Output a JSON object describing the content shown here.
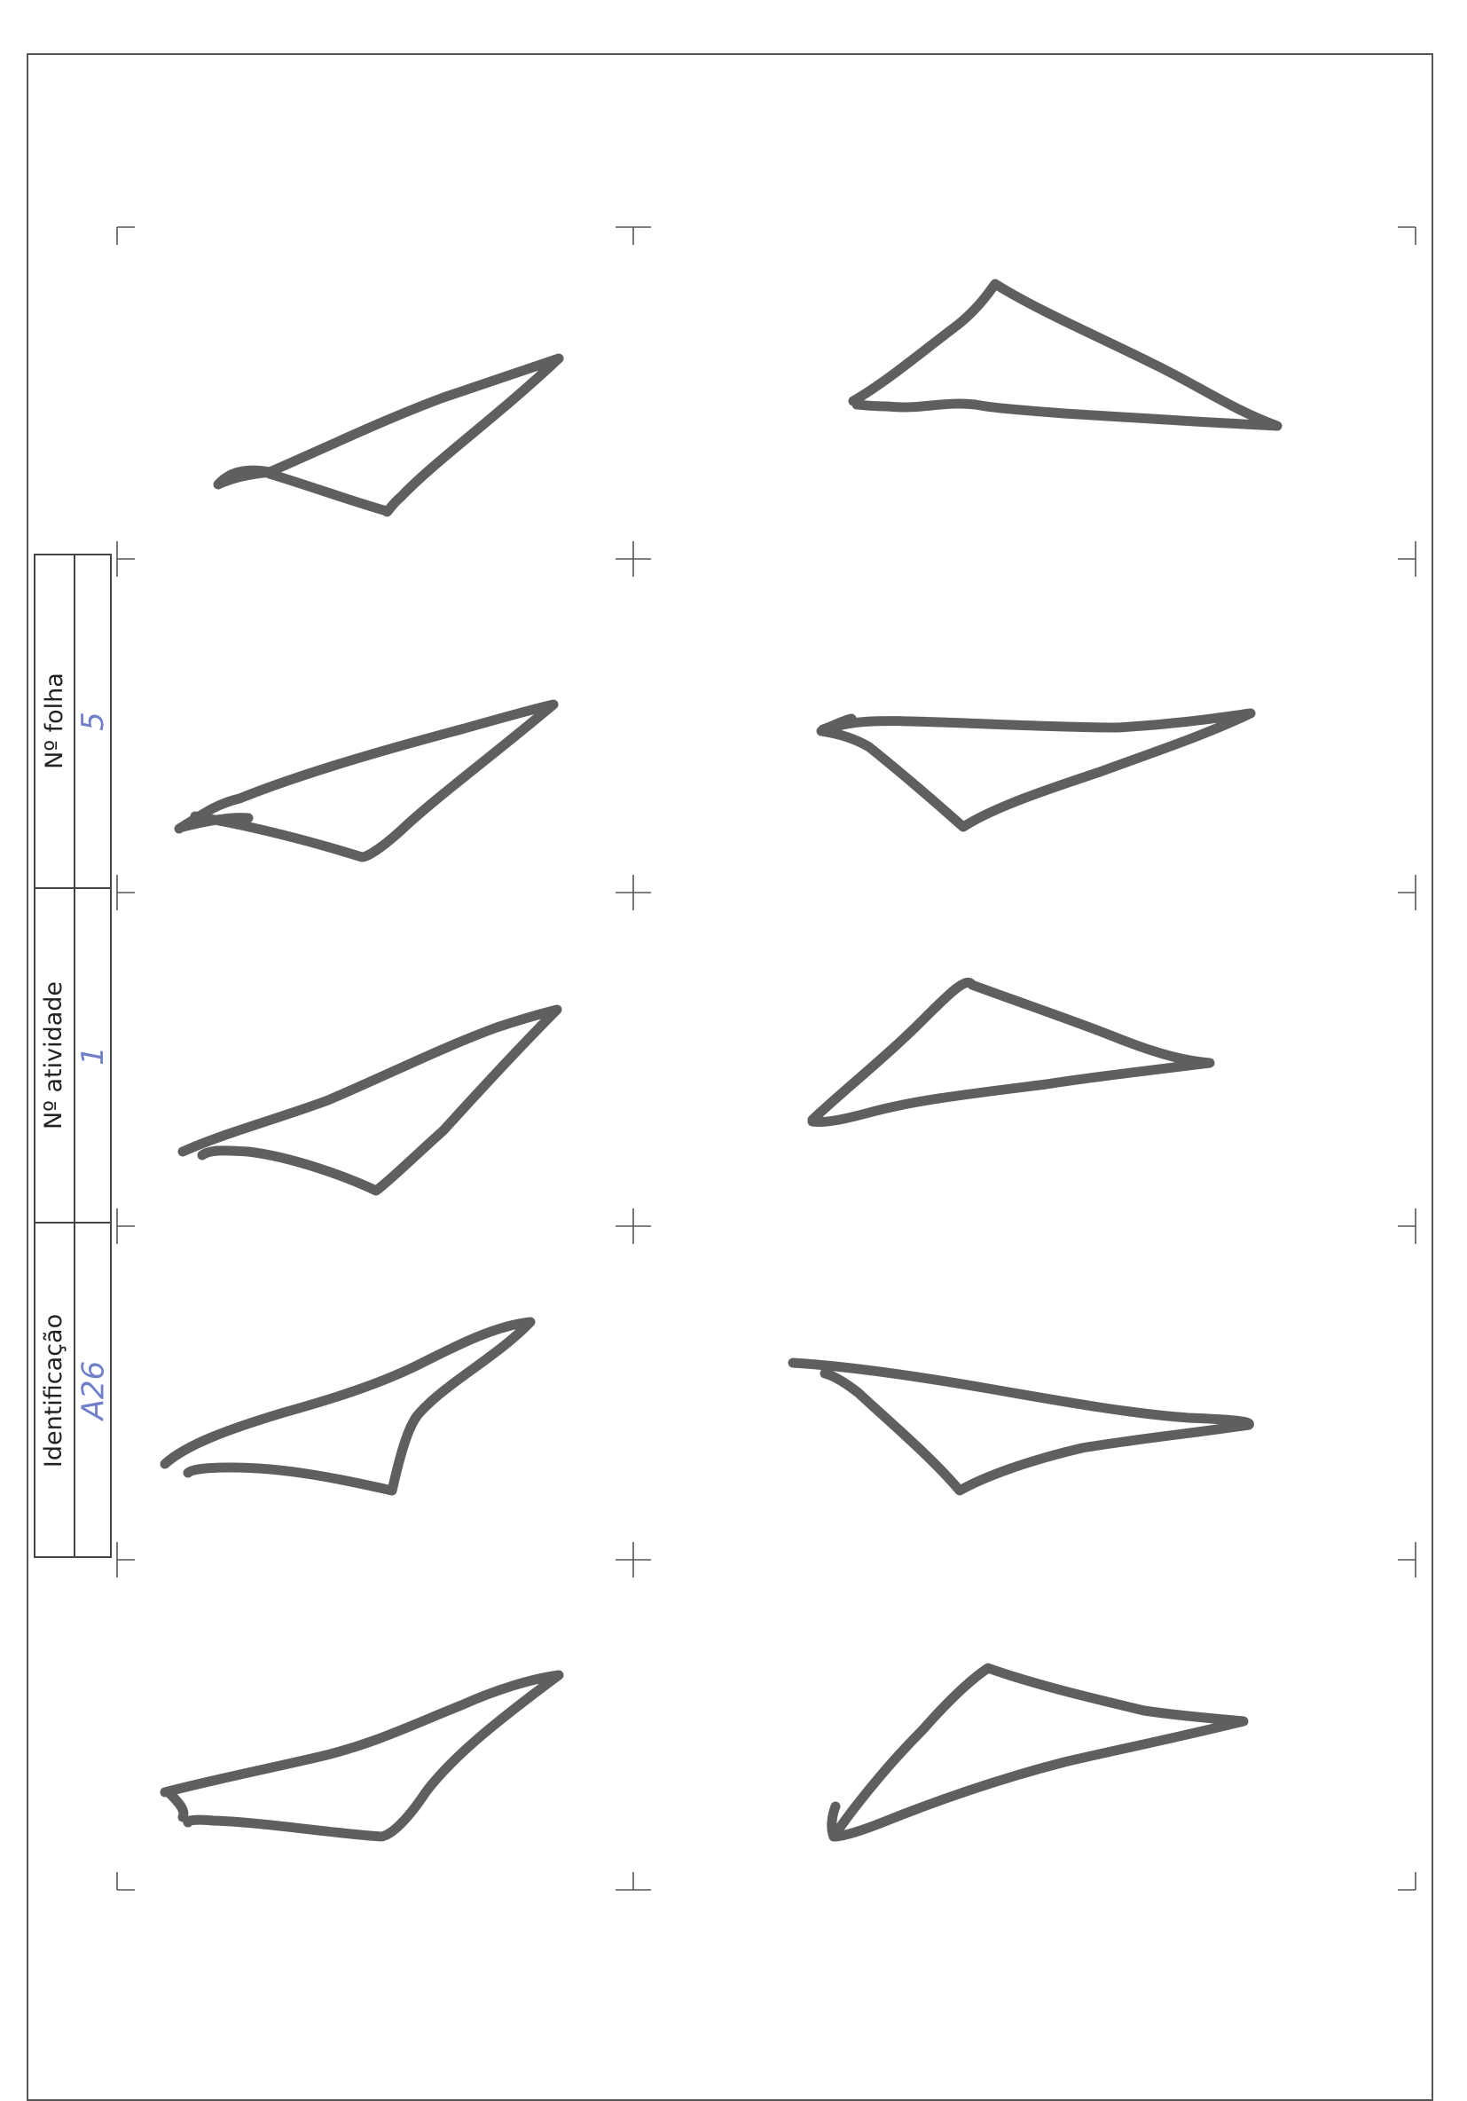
{
  "form": {
    "fields": [
      {
        "label": "Nº folha",
        "value": "5"
      },
      {
        "label": "Nº atividade",
        "value": "1"
      },
      {
        "label": "Identificação",
        "value": "A26"
      }
    ]
  },
  "drawings": {
    "count": 10,
    "shape": "triangle",
    "ink_color": "#5f5f5f",
    "handwriting_color": "#6f7fc8"
  }
}
